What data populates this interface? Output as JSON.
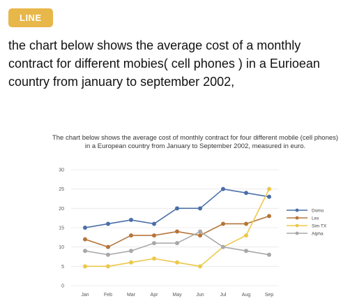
{
  "header": {
    "tag_label": "LINE",
    "question": "the chart below shows the average cost of a monthly contract for different mobies( cell phones ) in a Eurioean country from january to september 2002,"
  },
  "chart_data": {
    "type": "line",
    "title": "The chart below shows the average cost of monthly contract for four different mobile (cell phones) in a European country from January to September 2002, measured in euro.",
    "xlabel": "",
    "ylabel": "",
    "categories": [
      "Jan",
      "Feb",
      "Mar",
      "Apr",
      "May",
      "Jun",
      "Jul",
      "Aug",
      "Sep"
    ],
    "ylim": [
      0,
      30
    ],
    "yticks": [
      0,
      5,
      10,
      15,
      20,
      25,
      30
    ],
    "grid": "horizontal",
    "legend_position": "right",
    "series": [
      {
        "name": "Domo",
        "color": "#4a6fa8",
        "values": [
          15,
          16,
          17,
          16,
          20,
          20,
          25,
          24,
          23
        ]
      },
      {
        "name": "Lex",
        "color": "#b5763a",
        "values": [
          12,
          10,
          13,
          13,
          14,
          13,
          16,
          16,
          18
        ]
      },
      {
        "name": "Sim TX",
        "color": "#ecc84a",
        "values": [
          5,
          5,
          6,
          7,
          6,
          5,
          10,
          13,
          25
        ]
      },
      {
        "name": "Alpha",
        "color": "#a8a8a8",
        "values": [
          9,
          8,
          9,
          11,
          11,
          14,
          10,
          9,
          8
        ]
      }
    ]
  }
}
